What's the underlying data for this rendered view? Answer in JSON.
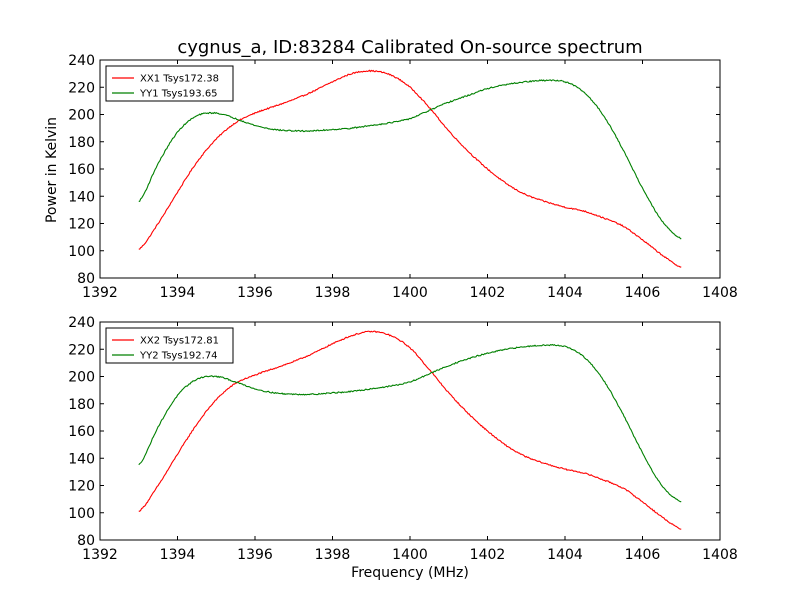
{
  "figure": {
    "title": "cygnus_a, ID:83284 Calibrated On-source spectrum",
    "xlabel": "Frequency (MHz)",
    "ylabel": "Power in Kelvin"
  },
  "chart_data": [
    {
      "type": "line",
      "panel": "top",
      "title": "cygnus_a, ID:83284 Calibrated On-source spectrum",
      "xlabel": "",
      "ylabel": "Power in Kelvin",
      "xlim": [
        1392,
        1408
      ],
      "ylim": [
        80,
        240
      ],
      "xticks": [
        1392,
        1394,
        1396,
        1398,
        1400,
        1402,
        1404,
        1406,
        1408
      ],
      "yticks": [
        80,
        100,
        120,
        140,
        160,
        180,
        200,
        220,
        240
      ],
      "grid": false,
      "legend": "top-left",
      "x": [
        1393.0,
        1393.5,
        1394.0,
        1394.5,
        1395.0,
        1395.5,
        1396.0,
        1396.5,
        1397.0,
        1397.5,
        1398.0,
        1398.5,
        1399.0,
        1399.5,
        1400.0,
        1400.5,
        1401.0,
        1401.5,
        1402.0,
        1402.5,
        1403.0,
        1403.5,
        1404.0,
        1404.5,
        1405.0,
        1405.5,
        1406.0,
        1406.5,
        1407.0
      ],
      "series": [
        {
          "name": "XX1 Tsys172.38",
          "color": "#ff0000",
          "values": [
            101,
            120,
            143,
            165,
            182,
            194,
            201,
            206,
            211,
            217,
            224,
            230,
            232,
            229,
            220,
            205,
            188,
            173,
            160,
            149,
            141,
            136,
            132,
            129,
            124,
            118,
            108,
            97,
            88
          ]
        },
        {
          "name": "YY1 Tsys193.65",
          "color": "#008000",
          "values": [
            136,
            164,
            187,
            199,
            201,
            197,
            192,
            189,
            188,
            188,
            189,
            190,
            192,
            194,
            197,
            203,
            209,
            214,
            219,
            222,
            224,
            225,
            224,
            216,
            199,
            174,
            146,
            122,
            109
          ]
        }
      ]
    },
    {
      "type": "line",
      "panel": "bottom",
      "title": "",
      "xlabel": "Frequency (MHz)",
      "ylabel": "",
      "xlim": [
        1392,
        1408
      ],
      "ylim": [
        80,
        240
      ],
      "xticks": [
        1392,
        1394,
        1396,
        1398,
        1400,
        1402,
        1404,
        1406,
        1408
      ],
      "yticks": [
        80,
        100,
        120,
        140,
        160,
        180,
        200,
        220,
        240
      ],
      "grid": false,
      "legend": "top-left",
      "x": [
        1393.0,
        1393.5,
        1394.0,
        1394.5,
        1395.0,
        1395.5,
        1396.0,
        1396.5,
        1397.0,
        1397.5,
        1398.0,
        1398.5,
        1399.0,
        1399.5,
        1400.0,
        1400.5,
        1401.0,
        1401.5,
        1402.0,
        1402.5,
        1403.0,
        1403.5,
        1404.0,
        1404.5,
        1405.0,
        1405.5,
        1406.0,
        1406.5,
        1407.0
      ],
      "series": [
        {
          "name": "XX2 Tsys172.81",
          "color": "#ff0000",
          "values": [
            101,
            120,
            143,
            165,
            183,
            195,
            201,
            206,
            211,
            217,
            224,
            230,
            233,
            230,
            221,
            205,
            188,
            173,
            160,
            149,
            141,
            136,
            132,
            129,
            124,
            118,
            108,
            97,
            88
          ]
        },
        {
          "name": "YY2 Tsys192.74",
          "color": "#008000",
          "values": [
            135,
            163,
            186,
            198,
            200,
            196,
            191,
            188,
            187,
            187,
            188,
            189,
            191,
            193,
            196,
            202,
            208,
            213,
            217,
            220,
            222,
            223,
            222,
            214,
            197,
            172,
            144,
            120,
            108
          ]
        }
      ]
    }
  ]
}
